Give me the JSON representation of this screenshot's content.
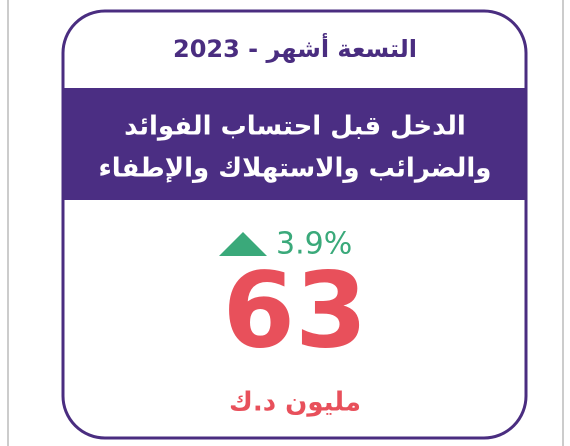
{
  "card": {
    "period": "التسعة أشهر - 2023",
    "title_lines": [
      "الدخل قبل احتساب الفوائد",
      "والضرائب والاستهلاك والإطفاء"
    ],
    "change": "3.9%",
    "value": "63",
    "unit": "مليون د.ك"
  }
}
